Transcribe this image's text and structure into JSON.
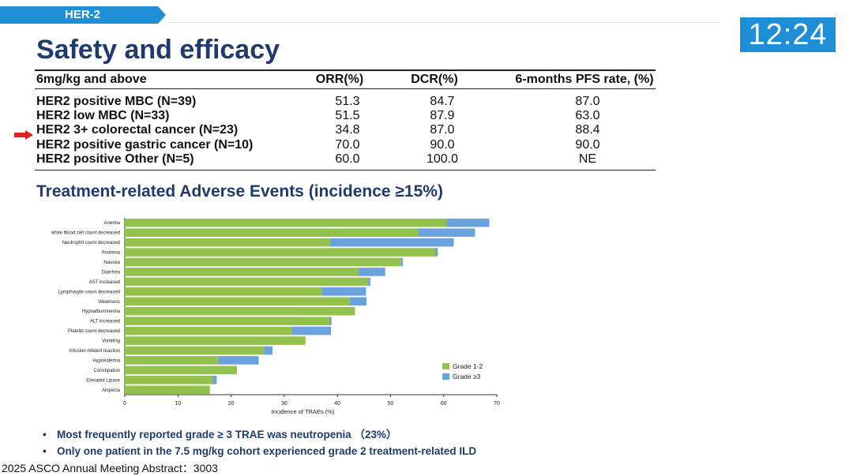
{
  "section_tag": "HER-2",
  "clock": "12:24",
  "title": "Safety and efficacy",
  "table": {
    "headers": [
      "6mg/kg and above",
      "ORR(%)",
      "DCR(%)",
      "6-months PFS rate, (%)"
    ],
    "rows": [
      {
        "label": "HER2 positive MBC (N=39)",
        "orr": "51.3",
        "dcr": "84.7",
        "pfs": "87.0"
      },
      {
        "label": "HER2 low MBC (N=33)",
        "orr": "51.5",
        "dcr": "87.9",
        "pfs": "63.0"
      },
      {
        "label": "HER2 3+ colorectal cancer (N=23)",
        "orr": "34.8",
        "dcr": "87.0",
        "pfs": "88.4"
      },
      {
        "label": "HER2 positive gastric cancer (N=10)",
        "orr": "70.0",
        "dcr": "90.0",
        "pfs": "90.0"
      },
      {
        "label": "HER2 positive Other (N=5)",
        "orr": "60.0",
        "dcr": "100.0",
        "pfs": "NE"
      }
    ]
  },
  "subtitle": "Treatment-related Adverse Events (incidence ≥15%)",
  "chart_data": {
    "type": "bar",
    "orientation": "horizontal",
    "stacked": true,
    "categories": [
      "Anemia",
      "white blood cell count decreased",
      "Neutrophil count decreased",
      "Anorexia",
      "Nausea",
      "Diarrhea",
      "AST increased",
      "Lymphocyte count decreased",
      "Weakness",
      "Hypoalbuminemia",
      "ALT increased",
      "Platelet count decreased",
      "Vomiting",
      "Infusion-related reaction",
      "Hypokalemia",
      "Constipation",
      "Elevated Lipase",
      "Alopecia"
    ],
    "series": [
      {
        "name": "Grade 1-2",
        "color": "#92c14c",
        "values": [
          60.5,
          55.3,
          38.7,
          58.4,
          52.0,
          44.0,
          45.8,
          37.1,
          42.3,
          43.3,
          38.5,
          31.5,
          34.0,
          26.2,
          17.6,
          21.1,
          16.5,
          16.0
        ]
      },
      {
        "name": "Grade ≥3",
        "color": "#6aa2e0",
        "values": [
          8.1,
          10.6,
          23.2,
          0.5,
          0.3,
          5.0,
          0.4,
          8.3,
          3.2,
          0.0,
          0.4,
          7.3,
          0.0,
          1.6,
          7.6,
          0.0,
          0.8,
          0.0
        ]
      }
    ],
    "xlabel": "Incidence of TRAEs (%)",
    "ylabel": "",
    "xlim": [
      0,
      70
    ],
    "xticks": [
      0,
      10,
      20,
      30,
      40,
      50,
      60,
      70
    ],
    "legend_position": "bottom-right"
  },
  "bullets": [
    "Most frequently reported grade ≥ 3 TRAE was neutropenia （23%）",
    "Only one patient in the 7.5 mg/kg cohort experienced grade 2 treatment-related ILD"
  ],
  "footer": "2025 ASCO Annual Meeting Abstract：3003"
}
